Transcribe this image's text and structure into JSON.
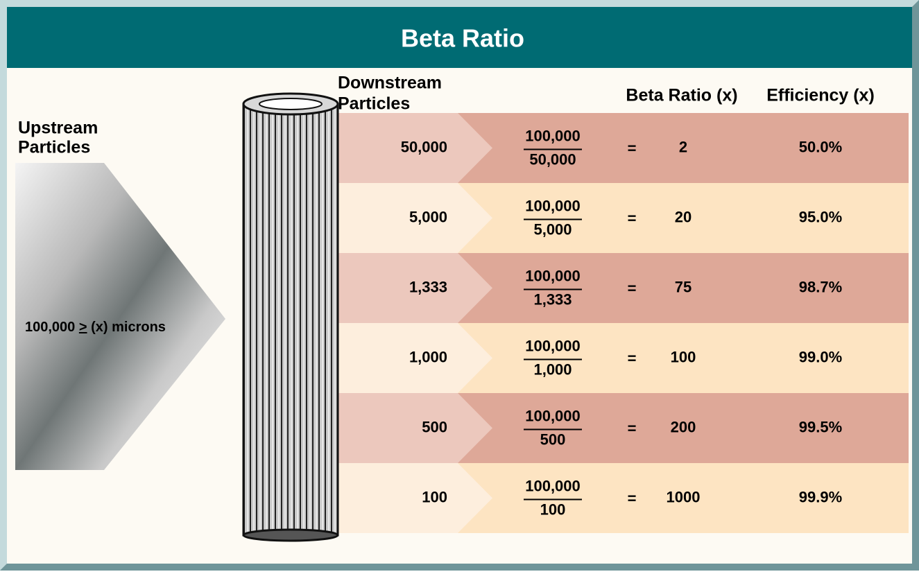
{
  "header": {
    "title": "Beta Ratio"
  },
  "upstream": {
    "label": [
      "Upstream",
      "Particles"
    ],
    "text": [
      "100,000",
      ">",
      "(x)",
      "microns"
    ]
  },
  "columns": {
    "downstream": [
      "Downstream",
      "Particles"
    ],
    "beta": "Beta Ratio (x)",
    "efficiency": "Efficiency (x)"
  },
  "rows": [
    {
      "downstream": "50,000",
      "numerator": "100,000",
      "denominator": "50,000",
      "equals": "=",
      "beta": "2",
      "efficiency": "50.0%"
    },
    {
      "downstream": "5,000",
      "numerator": "100,000",
      "denominator": "5,000",
      "equals": "=",
      "beta": "20",
      "efficiency": "95.0%"
    },
    {
      "downstream": "1,333",
      "numerator": "100,000",
      "denominator": "1,333",
      "equals": "=",
      "beta": "75",
      "efficiency": "98.7%"
    },
    {
      "downstream": "1,000",
      "numerator": "100,000",
      "denominator": "1,000",
      "equals": "=",
      "beta": "100",
      "efficiency": "99.0%"
    },
    {
      "downstream": "500",
      "numerator": "100,000",
      "denominator": "500",
      "equals": "=",
      "beta": "200",
      "efficiency": "99.5%"
    },
    {
      "downstream": "100",
      "numerator": "100,000",
      "denominator": "100",
      "equals": "=",
      "beta": "1000",
      "efficiency": "99.9%"
    }
  ]
}
